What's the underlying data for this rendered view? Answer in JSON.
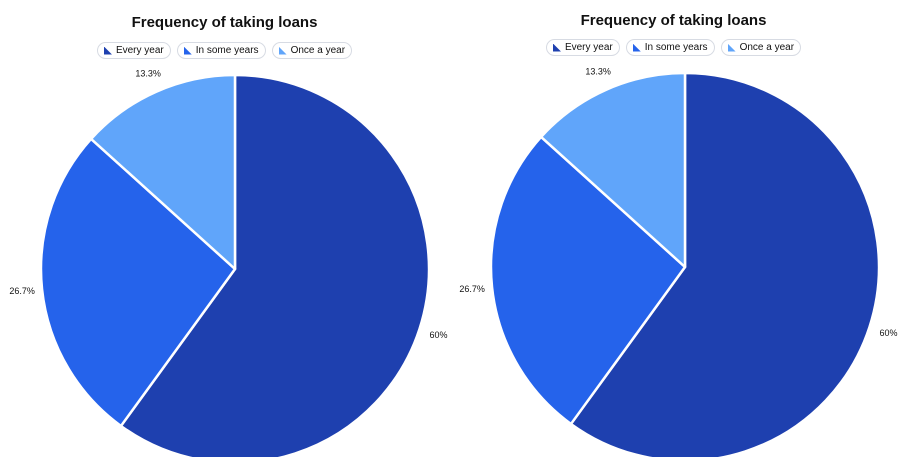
{
  "chart_data": [
    {
      "type": "pie",
      "title": "Frequency of taking loans",
      "categories": [
        "Every year",
        "In some years",
        "Once a year"
      ],
      "values": [
        60,
        26.7,
        13.3
      ],
      "labels": [
        "60%",
        "26.7%",
        "13.3%"
      ],
      "colors": [
        "#1e40af",
        "#2563eb",
        "#60a5fa"
      ],
      "legend_position": "top-center"
    },
    {
      "type": "pie",
      "title": "Frequency of taking loans",
      "categories": [
        "Every year",
        "In some years",
        "Once a year"
      ],
      "values": [
        60,
        26.7,
        13.3
      ],
      "labels": [
        "60%",
        "26.7%",
        "13.3%"
      ],
      "colors": [
        "#1e40af",
        "#2563eb",
        "#60a5fa"
      ],
      "legend_position": "top-center"
    }
  ]
}
